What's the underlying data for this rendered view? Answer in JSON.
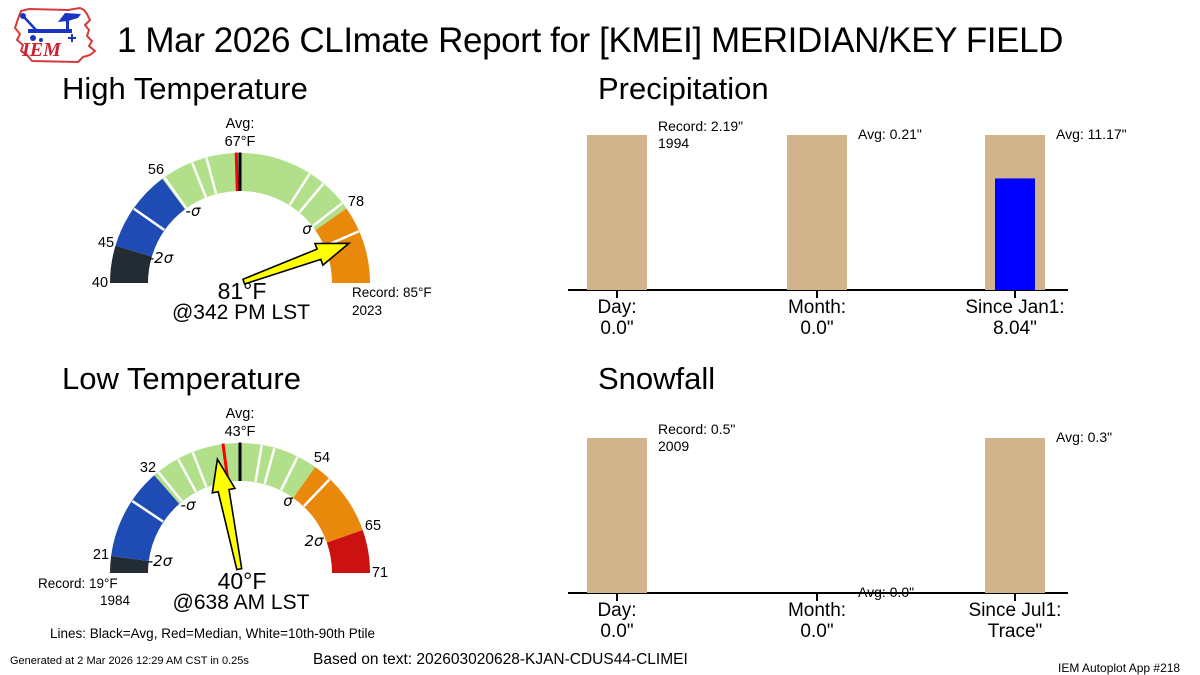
{
  "header": {
    "title": "1 Mar 2026 CLImate Report for [KMEI] MERIDIAN/KEY FIELD",
    "logo_text": "IEM"
  },
  "caption": "Lines: Black=Avg, Red=Median, White=10th-90th Ptile",
  "footer": {
    "generated": "Generated at 2 Mar 2026 12:29 AM CST in 0.25s",
    "based_on": "Based on text: 202603020628-KJAN-CDUS44-CLIMEI",
    "app": "IEM Autoplot App #218"
  },
  "colors": {
    "tan_bar": "#d2b48c",
    "observed_bar": "#0000ff",
    "needle_yellow": "#ffff00",
    "below_2sd": "#232c34",
    "below_1sd": "#1e4bb4",
    "normal_band": "#b2df8a",
    "above_1sd": "#e8890b",
    "above_2sd": "#cc1111",
    "median_line": "#ff0000",
    "avg_line": "#000000",
    "logo_red": "#d63a3a",
    "logo_blue": "#1a35c0"
  },
  "chart_data": [
    {
      "type": "gauge",
      "title": "High Temperature",
      "min": 40,
      "max": 85,
      "avg": 67,
      "median": 66.5,
      "value": 81,
      "value_label": "81°F",
      "time_label": "@342 PM LST",
      "avg_label": [
        "Avg:",
        "67°F"
      ],
      "record_label": [
        "Record: 85°F",
        "2023"
      ],
      "segments": [
        {
          "from": 40,
          "to": 45,
          "color_key": "below_2sd"
        },
        {
          "from": 45,
          "to": 56,
          "color_key": "below_1sd"
        },
        {
          "from": 56,
          "to": 78,
          "color_key": "normal_band"
        },
        {
          "from": 78,
          "to": 85,
          "color_key": "above_1sd"
        }
      ],
      "white_ticks": [
        50.5,
        56.3,
        60.5,
        62.5,
        73.5,
        75,
        77.4,
        80.3
      ],
      "arc_labels": [
        {
          "text": "40",
          "value": 40,
          "r": 140,
          "style": "num"
        },
        {
          "text": "45",
          "value": 45,
          "r": 140,
          "style": "num"
        },
        {
          "text": "56",
          "value": 56,
          "r": 141,
          "style": "num"
        },
        {
          "text": "78",
          "value": 78,
          "r": 141,
          "style": "num"
        },
        {
          "text": "-2σ",
          "value": 45.3,
          "r": 83,
          "style": "sigma"
        },
        {
          "text": "-σ",
          "value": 57,
          "r": 86,
          "style": "sigma"
        },
        {
          "text": "σ",
          "value": 77.3,
          "r": 86,
          "style": "sigma"
        }
      ]
    },
    {
      "type": "gauge",
      "title": "Low Temperature",
      "min": 19,
      "max": 71,
      "avg": 43,
      "median": 41,
      "value": 40,
      "value_label": "40°F",
      "time_label": "@638 AM LST",
      "avg_label": [
        "Avg:",
        "43°F"
      ],
      "record_label": [
        "Record: 19°F",
        "1984"
      ],
      "segments": [
        {
          "from": 19,
          "to": 21,
          "color_key": "below_2sd"
        },
        {
          "from": 21,
          "to": 32,
          "color_key": "below_1sd"
        },
        {
          "from": 32,
          "to": 54,
          "color_key": "normal_band"
        },
        {
          "from": 54,
          "to": 65,
          "color_key": "above_1sd"
        },
        {
          "from": 65,
          "to": 71,
          "color_key": "above_2sd"
        }
      ],
      "white_ticks": [
        28,
        32.6,
        35.4,
        37.3,
        46,
        47.8,
        51.2,
        56.6
      ],
      "arc_labels": [
        {
          "text": "21",
          "value": 21,
          "r": 140,
          "style": "num"
        },
        {
          "text": "32",
          "value": 32,
          "r": 140,
          "style": "num"
        },
        {
          "text": "54",
          "value": 54,
          "r": 141,
          "style": "num"
        },
        {
          "text": "65",
          "value": 65,
          "r": 141,
          "style": "num"
        },
        {
          "text": "71",
          "value": 71,
          "r": 140,
          "style": "num"
        },
        {
          "text": "-2σ",
          "value": 21.3,
          "r": 81,
          "style": "sigma"
        },
        {
          "text": "-σ",
          "value": 33,
          "r": 86,
          "style": "sigma"
        },
        {
          "text": "σ",
          "value": 53.5,
          "r": 86,
          "style": "sigma"
        },
        {
          "text": "2σ",
          "value": 63.8,
          "r": 81,
          "style": "sigma"
        }
      ]
    },
    {
      "type": "bar",
      "title": "Precipitation",
      "bars": [
        {
          "category": "Day:",
          "value_text": "0.0\"",
          "observed": 0.0,
          "reference": 2.19,
          "annotation": [
            "Record: 2.19\"",
            "1994"
          ]
        },
        {
          "category": "Month:",
          "value_text": "0.0\"",
          "observed": 0.0,
          "reference": 0.21,
          "annotation": [
            "Avg: 0.21\""
          ]
        },
        {
          "category": "Since Jan1:",
          "value_text": "8.04\"",
          "observed": 8.04,
          "reference": 11.17,
          "annotation": [
            "Avg: 11.17\""
          ]
        }
      ]
    },
    {
      "type": "bar",
      "title": "Snowfall",
      "bars": [
        {
          "category": "Day:",
          "value_text": "0.0\"",
          "observed": 0.0,
          "reference": 0.5,
          "annotation": [
            "Record: 0.5\"",
            "2009"
          ]
        },
        {
          "category": "Month:",
          "value_text": "0.0\"",
          "observed": 0.0,
          "reference": 0.0,
          "annotation": [
            "Avg: 0.0\""
          ]
        },
        {
          "category": "Since Jul1:",
          "value_text": "Trace\"",
          "observed": 0.0,
          "reference": 0.3,
          "annotation": [
            "Avg: 0.3\""
          ]
        }
      ]
    }
  ]
}
